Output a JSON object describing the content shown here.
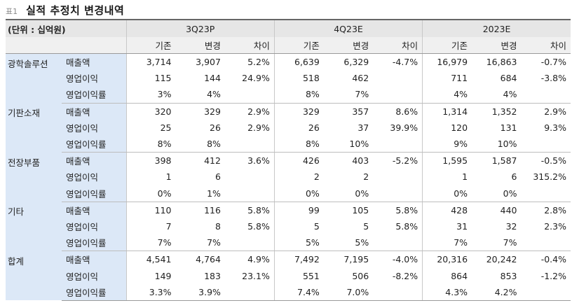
{
  "title": {
    "tag": "표1",
    "text": "실적 추정치 변경내역"
  },
  "header": {
    "unit": "(단위 : 십억원)",
    "periods": [
      "3Q23P",
      "4Q23E",
      "2023E"
    ],
    "subcols": [
      "기존",
      "변경",
      "차이"
    ]
  },
  "groups": [
    {
      "segment": "광학솔루션",
      "rows": [
        {
          "item": "매출액",
          "cells": [
            "3,714",
            "3,907",
            "5.2%",
            "6,639",
            "6,329",
            "-4.7%",
            "16,979",
            "16,863",
            "-0.7%"
          ]
        },
        {
          "item": "영업이익",
          "cells": [
            "115",
            "144",
            "24.9%",
            "518",
            "462",
            "",
            "711",
            "684",
            "-3.8%"
          ]
        },
        {
          "item": "영업이익률",
          "cells": [
            "3%",
            "4%",
            "",
            "8%",
            "7%",
            "",
            "4%",
            "4%",
            ""
          ]
        }
      ]
    },
    {
      "segment": "기판소재",
      "rows": [
        {
          "item": "매출액",
          "cells": [
            "320",
            "329",
            "2.9%",
            "329",
            "357",
            "8.6%",
            "1,314",
            "1,352",
            "2.9%"
          ]
        },
        {
          "item": "영업이익",
          "cells": [
            "25",
            "26",
            "2.9%",
            "26",
            "37",
            "39.9%",
            "120",
            "131",
            "9.3%"
          ]
        },
        {
          "item": "영업이익률",
          "cells": [
            "8%",
            "8%",
            "",
            "8%",
            "10%",
            "",
            "9%",
            "10%",
            ""
          ]
        }
      ]
    },
    {
      "segment": "전장부품",
      "rows": [
        {
          "item": "매출액",
          "cells": [
            "398",
            "412",
            "3.6%",
            "426",
            "403",
            "-5.2%",
            "1,595",
            "1,587",
            "-0.5%"
          ]
        },
        {
          "item": "영업이익",
          "cells": [
            "1",
            "6",
            "",
            "2",
            "2",
            "",
            "1",
            "6",
            "315.2%"
          ]
        },
        {
          "item": "영업이익률",
          "cells": [
            "0%",
            "1%",
            "",
            "0%",
            "0%",
            "",
            "0%",
            "0%",
            ""
          ]
        }
      ]
    },
    {
      "segment": "기타",
      "rows": [
        {
          "item": "매출액",
          "cells": [
            "110",
            "116",
            "5.8%",
            "99",
            "105",
            "5.8%",
            "428",
            "440",
            "2.8%"
          ]
        },
        {
          "item": "영업이익",
          "cells": [
            "7",
            "8",
            "5.8%",
            "5",
            "5",
            "5.8%",
            "31",
            "32",
            "2.3%"
          ]
        },
        {
          "item": "영업이익률",
          "cells": [
            "7%",
            "7%",
            "",
            "5%",
            "5%",
            "",
            "7%",
            "7%",
            ""
          ]
        }
      ]
    },
    {
      "segment": "합계",
      "rows": [
        {
          "item": "매출액",
          "cells": [
            "4,541",
            "4,764",
            "4.9%",
            "7,492",
            "7,195",
            "-4.0%",
            "20,316",
            "20,242",
            "-0.4%"
          ]
        },
        {
          "item": "영업이익",
          "cells": [
            "149",
            "183",
            "23.1%",
            "551",
            "506",
            "-8.2%",
            "864",
            "853",
            "-1.2%"
          ]
        },
        {
          "item": "영업이익률",
          "cells": [
            "3.3%",
            "3.9%",
            "",
            "7.4%",
            "7.0%",
            "",
            "4.3%",
            "4.2%",
            ""
          ]
        }
      ]
    }
  ]
}
